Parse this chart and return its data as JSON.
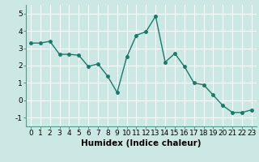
{
  "x": [
    0,
    1,
    2,
    3,
    4,
    5,
    6,
    7,
    8,
    9,
    10,
    11,
    12,
    13,
    14,
    15,
    16,
    17,
    18,
    19,
    20,
    21,
    22,
    23
  ],
  "y": [
    3.3,
    3.3,
    3.4,
    2.65,
    2.65,
    2.6,
    1.95,
    2.1,
    1.4,
    0.45,
    2.5,
    3.75,
    3.95,
    4.85,
    2.2,
    2.7,
    1.95,
    1.0,
    0.9,
    0.3,
    -0.3,
    -0.7,
    -0.7,
    -0.55
  ],
  "line_color": "#1a7a6a",
  "marker": "o",
  "marker_size": 2.5,
  "linewidth": 1.0,
  "xlabel": "Humidex (Indice chaleur)",
  "xlim": [
    -0.5,
    23.5
  ],
  "ylim": [
    -1.5,
    5.5
  ],
  "yticks": [
    -1,
    0,
    1,
    2,
    3,
    4,
    5
  ],
  "xticks": [
    0,
    1,
    2,
    3,
    4,
    5,
    6,
    7,
    8,
    9,
    10,
    11,
    12,
    13,
    14,
    15,
    16,
    17,
    18,
    19,
    20,
    21,
    22,
    23
  ],
  "background_color": "#cce8e4",
  "grid_color": "#ffffff",
  "tick_fontsize": 6.5,
  "xlabel_fontsize": 7.5
}
